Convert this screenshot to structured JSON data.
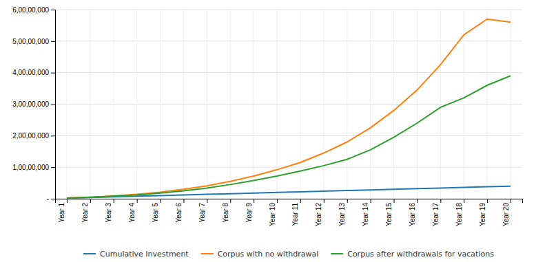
{
  "chart_data": {
    "type": "line",
    "categories": [
      "Year 1",
      "Year 2",
      "Year 3",
      "Year 4",
      "Year 5",
      "Year 6",
      "Year 7",
      "Year 8",
      "Year 9",
      "Year 10",
      "Year 11",
      "Year 12",
      "Year 13",
      "Year 14",
      "Year 15",
      "Year 16",
      "Year 17",
      "Year 18",
      "Year 19",
      "Year 20"
    ],
    "series": [
      {
        "name": "Cumulative Investment",
        "values": [
          200000,
          400000,
          600000,
          800000,
          1000000,
          1200000,
          1400000,
          1600000,
          1800000,
          2000000,
          2200000,
          2400000,
          2600000,
          2800000,
          3000000,
          3200000,
          3400000,
          3600000,
          3800000,
          4000000
        ]
      },
      {
        "name": "Corpus with no withdrawal",
        "values": [
          200000,
          500000,
          900000,
          1400000,
          2100000,
          3000000,
          4100000,
          5500000,
          7200000,
          9200000,
          11500000,
          14500000,
          18000000,
          22500000,
          28000000,
          34500000,
          42500000,
          52000000,
          57000000,
          56000000
        ]
      },
      {
        "name": "Corpus after withdrawals for vacations",
        "values": [
          200000,
          500000,
          800000,
          1200000,
          1800000,
          2500000,
          3400000,
          4500000,
          5800000,
          7200000,
          8800000,
          10500000,
          12500000,
          15500000,
          19500000,
          24000000,
          29000000,
          32000000,
          36000000,
          39000000
        ]
      }
    ],
    "ylim": [
      0,
      60000000
    ],
    "yticks": [
      {
        "value": 0,
        "label": "-"
      },
      {
        "value": 10000000,
        "label": "1,00,00,000"
      },
      {
        "value": 20000000,
        "label": "2,00,00,000"
      },
      {
        "value": 30000000,
        "label": "3,00,00,000"
      },
      {
        "value": 40000000,
        "label": "4,00,00,000"
      },
      {
        "value": 50000000,
        "label": "5,00,00,000"
      },
      {
        "value": 60000000,
        "label": "6,00,00,000"
      }
    ],
    "grid": true,
    "legend": "bottom"
  }
}
